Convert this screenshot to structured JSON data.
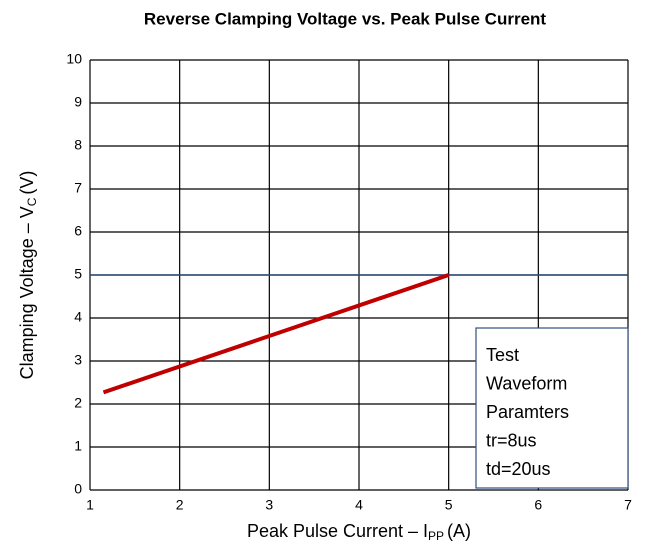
{
  "chart_data": {
    "type": "line",
    "title": "Reverse Clamping Voltage vs. Peak Pulse Current",
    "x_label": {
      "text": "Peak Pulse Current – I",
      "sub": "PP",
      "suffix": "(A)"
    },
    "y_label": {
      "text": "Clamping Voltage – V",
      "sub": "C",
      "suffix": "(V)"
    },
    "series": [
      {
        "name": "Clamping Voltage",
        "color": "#c00000",
        "x": [
          1.15,
          5
        ],
        "values": [
          2.27,
          5
        ]
      }
    ],
    "xlim": [
      1,
      7
    ],
    "xticks": [
      1,
      2,
      3,
      4,
      5,
      6,
      7
    ],
    "ylim": [
      0,
      10
    ],
    "yticks": [
      0,
      1,
      2,
      3,
      4,
      5,
      6,
      7,
      8,
      9,
      10
    ],
    "grid": true,
    "reference_line": {
      "value": 5,
      "color": "#2f4f7f"
    },
    "annotation": [
      "Test",
      "Waveform",
      "Paramters",
      "tr=8us",
      "td=20us"
    ]
  }
}
